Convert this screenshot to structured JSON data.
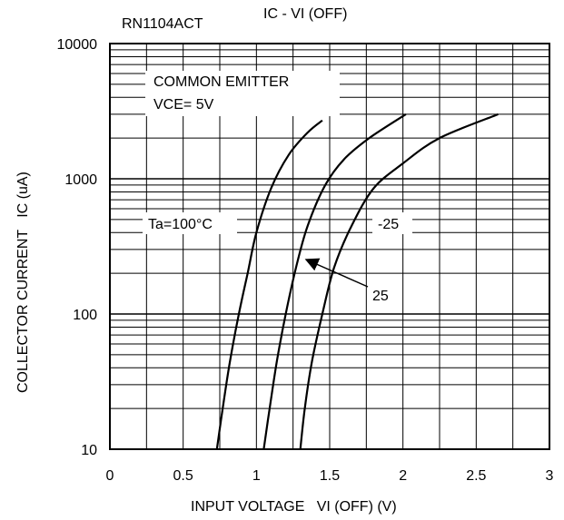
{
  "chart_data": {
    "type": "line",
    "title": "IC - VI (OFF)",
    "part_number": "RN1104ACT",
    "xlabel": "INPUT VOLTAGE   VI (OFF) (V)",
    "ylabel": "COLLECTOR CURRENT   IC (uA)",
    "xlim": [
      0,
      3
    ],
    "ylim": [
      10,
      10000
    ],
    "y_scale": "log",
    "x_ticks": [
      "0",
      "0.5",
      "1",
      "1.5",
      "2",
      "2.5",
      "3"
    ],
    "y_ticks": [
      "10",
      "100",
      "1000",
      "10000"
    ],
    "grid": true,
    "annotations": {
      "condition_line1": "COMMON EMITTER",
      "condition_line2": "VCE= 5V",
      "label_100": "Ta=100°C",
      "label_25": "25",
      "label_minus25": "-25"
    },
    "series": [
      {
        "name": "Ta=100°C",
        "x": [
          0.73,
          0.77,
          0.82,
          0.88,
          0.94,
          1.0,
          1.1,
          1.22,
          1.35,
          1.45
        ],
        "y": [
          10,
          20,
          45,
          100,
          200,
          400,
          850,
          1500,
          2200,
          2700
        ]
      },
      {
        "name": "25",
        "x": [
          1.05,
          1.09,
          1.14,
          1.2,
          1.27,
          1.35,
          1.47,
          1.6,
          1.77,
          2.02
        ],
        "y": [
          10,
          20,
          45,
          100,
          220,
          450,
          900,
          1400,
          2000,
          3000
        ]
      },
      {
        "name": "-25",
        "x": [
          1.3,
          1.33,
          1.38,
          1.45,
          1.53,
          1.65,
          1.8,
          2.0,
          2.25,
          2.65
        ],
        "y": [
          10,
          20,
          45,
          100,
          220,
          450,
          850,
          1300,
          2000,
          3000
        ]
      }
    ]
  }
}
